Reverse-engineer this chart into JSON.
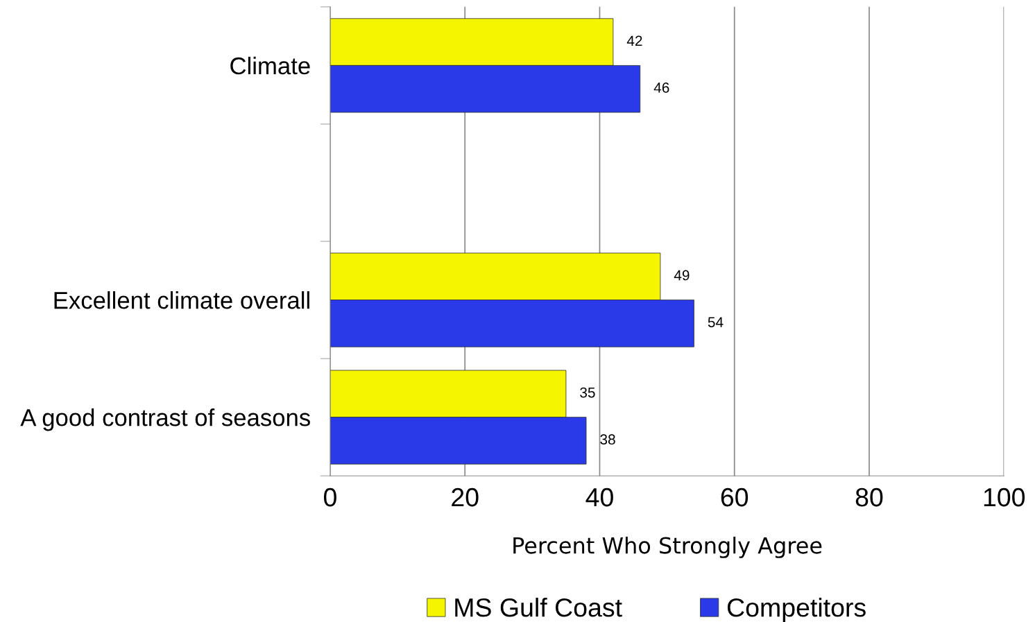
{
  "chart_data": {
    "type": "bar",
    "orientation": "horizontal",
    "xlabel": "Percent Who Strongly Agree",
    "categories": [
      "Climate",
      null,
      "Excellent climate overall",
      "A good contrast of seasons"
    ],
    "series": [
      {
        "name": "MS Gulf Coast",
        "color": "#f5f500",
        "values": [
          42,
          null,
          49,
          35
        ]
      },
      {
        "name": "Competitors",
        "color": "#2a3ae8",
        "values": [
          46,
          null,
          54,
          38
        ]
      }
    ],
    "xlim": [
      0,
      100
    ],
    "xticks": [
      0,
      20,
      40,
      60,
      80,
      100
    ],
    "grid": "x",
    "legend": "bottom",
    "data_labels": true
  }
}
